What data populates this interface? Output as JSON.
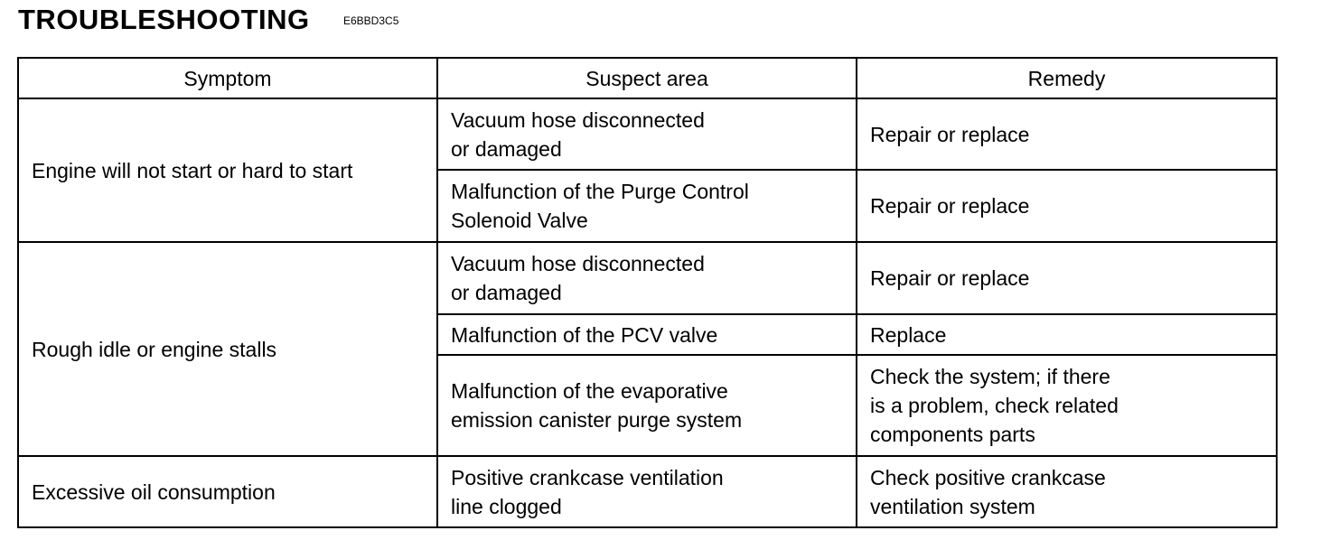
{
  "title": "TROUBLESHOOTING",
  "code": "E6BBD3C5",
  "headers": [
    "Symptom",
    "Suspect area",
    "Remedy"
  ],
  "rows": [
    {
      "symptom": "Engine will not start or hard to start",
      "items": [
        {
          "suspect": [
            "Vacuum hose disconnected",
            "or damaged"
          ],
          "remedy": [
            "Repair or replace"
          ]
        },
        {
          "suspect": [
            "Malfunction of the Purge Control",
            "Solenoid Valve"
          ],
          "remedy": [
            "Repair or replace"
          ]
        }
      ]
    },
    {
      "symptom": "Rough idle or engine stalls",
      "items": [
        {
          "suspect": [
            "Vacuum hose disconnected",
            "or damaged"
          ],
          "remedy": [
            "Repair or replace"
          ]
        },
        {
          "suspect": [
            "Malfunction of the PCV valve"
          ],
          "remedy": [
            "Replace"
          ]
        },
        {
          "suspect": [
            "Malfunction of the evaporative",
            "emission canister purge system"
          ],
          "remedy": [
            "Check the system; if there",
            "is a problem, check related",
            "components parts"
          ]
        }
      ]
    },
    {
      "symptom": "Excessive oil consumption",
      "items": [
        {
          "suspect": [
            "Positive crankcase ventilation",
            "line clogged"
          ],
          "remedy": [
            "Check positive crankcase",
            "ventilation system"
          ]
        }
      ]
    }
  ]
}
